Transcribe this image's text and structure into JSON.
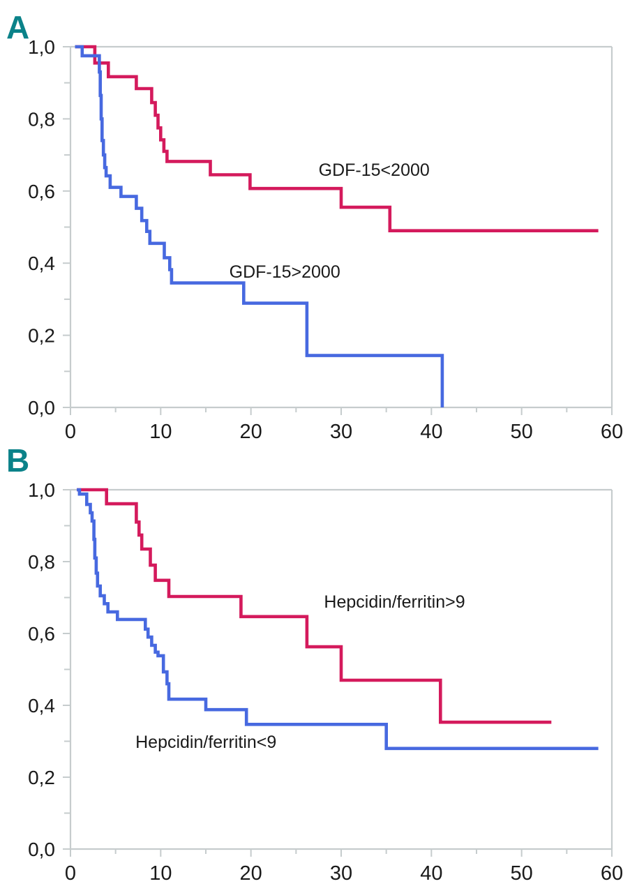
{
  "figure": {
    "type": "kaplan-meier-survival-figure",
    "background": "#ffffff",
    "panel_letter_color": "#0b8289",
    "axis_color": "#c6cccd",
    "tick_text_color": "#1a1a1a",
    "panel_a_letter": "A",
    "panel_b_letter": "B"
  },
  "chart_data": [
    {
      "type": "line",
      "style": "step-after",
      "panel_label": "A",
      "title": "",
      "xlabel": "",
      "ylabel": "",
      "xlim": [
        0,
        60
      ],
      "ylim": [
        0.0,
        1.0
      ],
      "grid": "single horizontal gridline at y=1.0 plus full light-gray frame",
      "legend": "inline text annotations, no legend box",
      "x_ticks": [
        {
          "v": 0,
          "label": "0"
        },
        {
          "v": 10,
          "label": "10"
        },
        {
          "v": 20,
          "label": "20"
        },
        {
          "v": 30,
          "label": "30"
        },
        {
          "v": 40,
          "label": "40"
        },
        {
          "v": 50,
          "label": "50"
        },
        {
          "v": 60,
          "label": "60"
        }
      ],
      "x_minor_ticks": [
        5,
        15,
        25,
        35,
        45,
        55
      ],
      "y_ticks": [
        {
          "v": 1.0,
          "label": "1,0"
        },
        {
          "v": 0.8,
          "label": "0,8"
        },
        {
          "v": 0.6,
          "label": "0,6"
        },
        {
          "v": 0.4,
          "label": "0,4"
        },
        {
          "v": 0.2,
          "label": "0,2"
        },
        {
          "v": 0.0,
          "label": "0,0"
        }
      ],
      "y_minor_ticks": [
        0.9,
        0.7,
        0.5,
        0.3,
        0.1
      ],
      "annotations": [
        {
          "text": "GDF-15<2000",
          "x": 27.5,
          "y": 0.642,
          "color": "#1a1a1a"
        },
        {
          "text": "GDF-15>2000",
          "x": 17.6,
          "y": 0.36,
          "color": "#1a1a1a"
        }
      ],
      "series": [
        {
          "name": "GDF-15<2000",
          "color": "#d41a5c",
          "points": [
            [
              0.5,
              1.0
            ],
            [
              2.7,
              0.955
            ],
            [
              4.2,
              0.917
            ],
            [
              7.3,
              0.884
            ],
            [
              9.0,
              0.845
            ],
            [
              9.4,
              0.81
            ],
            [
              9.7,
              0.775
            ],
            [
              10.0,
              0.742
            ],
            [
              10.35,
              0.71
            ],
            [
              10.7,
              0.682
            ],
            [
              15.5,
              0.645
            ],
            [
              19.9,
              0.607
            ],
            [
              30.0,
              0.555
            ],
            [
              35.4,
              0.49
            ],
            [
              58.5,
              0.49
            ]
          ]
        },
        {
          "name": "GDF-15>2000",
          "color": "#4769e0",
          "points": [
            [
              0.5,
              1.0
            ],
            [
              1.3,
              0.975
            ],
            [
              3.2,
              0.93
            ],
            [
              3.3,
              0.865
            ],
            [
              3.4,
              0.8
            ],
            [
              3.5,
              0.74
            ],
            [
              3.65,
              0.7
            ],
            [
              3.8,
              0.665
            ],
            [
              3.95,
              0.642
            ],
            [
              4.4,
              0.61
            ],
            [
              5.6,
              0.585
            ],
            [
              7.3,
              0.552
            ],
            [
              7.9,
              0.518
            ],
            [
              8.45,
              0.488
            ],
            [
              8.8,
              0.455
            ],
            [
              10.4,
              0.415
            ],
            [
              11.0,
              0.382
            ],
            [
              11.2,
              0.345
            ],
            [
              19.2,
              0.289
            ],
            [
              26.2,
              0.144
            ],
            [
              41.2,
              0.0
            ]
          ]
        }
      ]
    },
    {
      "type": "line",
      "style": "step-after",
      "panel_label": "B",
      "title": "",
      "xlabel": "",
      "ylabel": "",
      "xlim": [
        0,
        60
      ],
      "ylim": [
        0.0,
        1.0
      ],
      "grid": "single horizontal gridline at y=1.0 plus full light-gray frame",
      "legend": "inline text annotations, no legend box",
      "x_ticks": [
        {
          "v": 0,
          "label": "0"
        },
        {
          "v": 10,
          "label": "10"
        },
        {
          "v": 20,
          "label": "20"
        },
        {
          "v": 30,
          "label": "30"
        },
        {
          "v": 40,
          "label": "40"
        },
        {
          "v": 50,
          "label": "50"
        },
        {
          "v": 60,
          "label": "60"
        }
      ],
      "x_minor_ticks": [
        5,
        15,
        25,
        35,
        45,
        55
      ],
      "y_ticks": [
        {
          "v": 1.0,
          "label": "1,0"
        },
        {
          "v": 0.8,
          "label": "0,8"
        },
        {
          "v": 0.6,
          "label": "0,6"
        },
        {
          "v": 0.4,
          "label": "0,4"
        },
        {
          "v": 0.2,
          "label": "0,2"
        },
        {
          "v": 0.0,
          "label": "0,0"
        }
      ],
      "y_minor_ticks": [
        0.9,
        0.7,
        0.5,
        0.3,
        0.1
      ],
      "annotations": [
        {
          "text": "Hepcidin/ferritin>9",
          "x": 28.1,
          "y": 0.672,
          "color": "#1a1a1a"
        },
        {
          "text": "Hepcidin/ferritin<9",
          "x": 7.2,
          "y": 0.282,
          "color": "#1a1a1a"
        }
      ],
      "series": [
        {
          "name": "Hepcidin/ferritin>9",
          "color": "#d41a5c",
          "points": [
            [
              0.7,
              1.0
            ],
            [
              4.0,
              0.961
            ],
            [
              7.3,
              0.91
            ],
            [
              7.6,
              0.874
            ],
            [
              7.9,
              0.835
            ],
            [
              8.85,
              0.79
            ],
            [
              9.4,
              0.748
            ],
            [
              10.9,
              0.703
            ],
            [
              18.9,
              0.647
            ],
            [
              26.2,
              0.563
            ],
            [
              30.0,
              0.47
            ],
            [
              41.0,
              0.353
            ],
            [
              53.3,
              0.353
            ]
          ]
        },
        {
          "name": "Hepcidin/ferritin<9",
          "color": "#4769e0",
          "points": [
            [
              0.7,
              1.0
            ],
            [
              1.0,
              0.988
            ],
            [
              1.8,
              0.959
            ],
            [
              2.2,
              0.936
            ],
            [
              2.4,
              0.913
            ],
            [
              2.6,
              0.862
            ],
            [
              2.7,
              0.81
            ],
            [
              2.85,
              0.768
            ],
            [
              3.0,
              0.732
            ],
            [
              3.3,
              0.705
            ],
            [
              3.75,
              0.683
            ],
            [
              4.15,
              0.66
            ],
            [
              5.2,
              0.639
            ],
            [
              8.3,
              0.612
            ],
            [
              8.6,
              0.59
            ],
            [
              9.0,
              0.567
            ],
            [
              9.4,
              0.548
            ],
            [
              9.7,
              0.538
            ],
            [
              10.3,
              0.493
            ],
            [
              10.7,
              0.46
            ],
            [
              10.9,
              0.417
            ],
            [
              15.0,
              0.388
            ],
            [
              19.5,
              0.347
            ],
            [
              35.0,
              0.28
            ],
            [
              58.5,
              0.28
            ]
          ]
        }
      ]
    }
  ]
}
